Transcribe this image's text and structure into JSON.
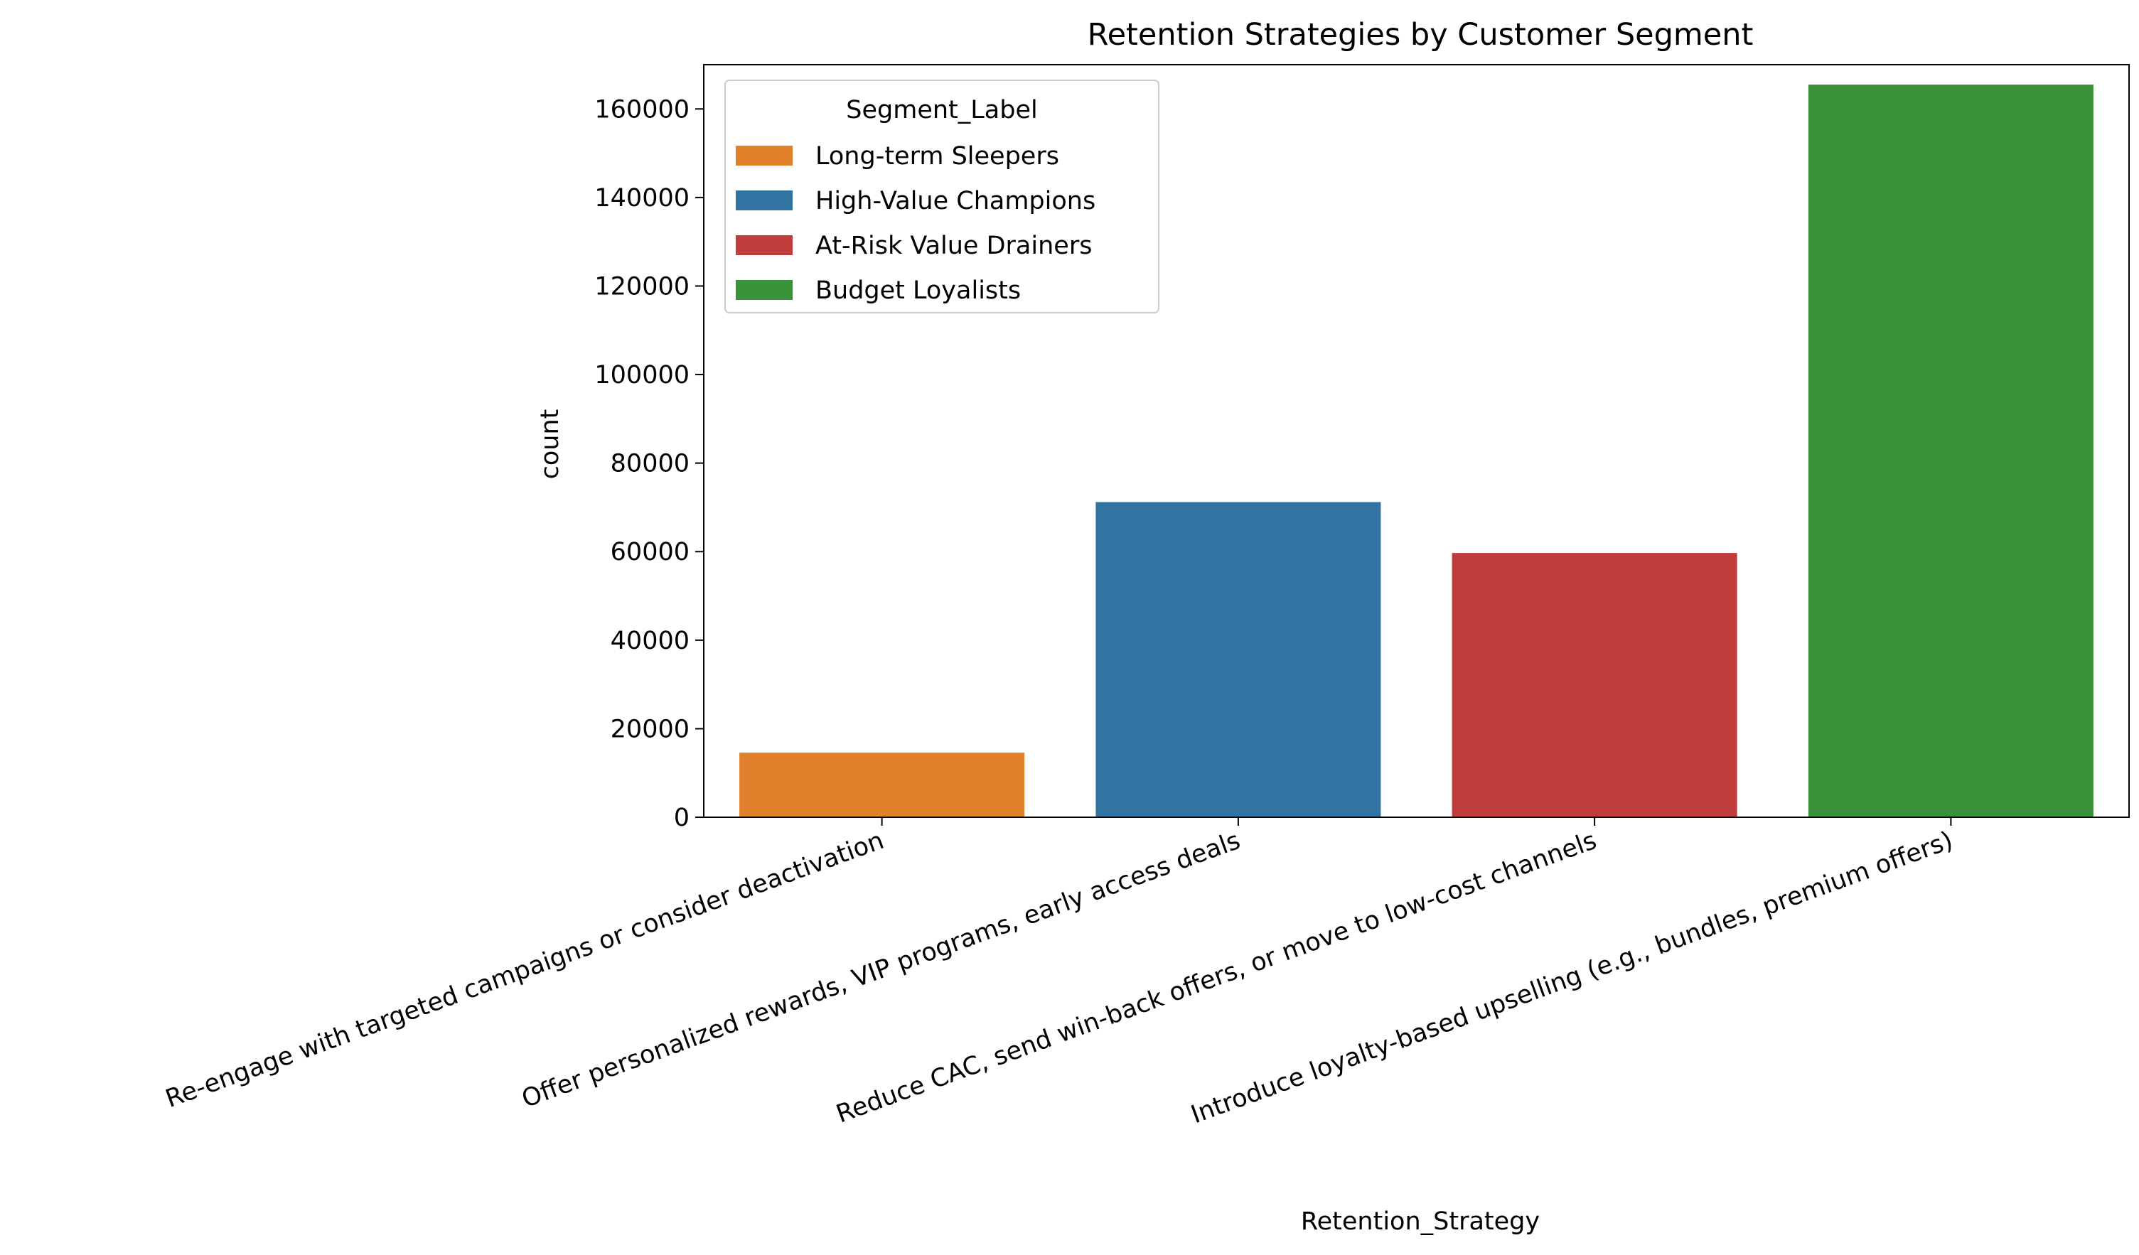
{
  "chart_data": {
    "type": "bar",
    "title": "Retention Strategies by Customer Segment",
    "xlabel": "Retention_Strategy",
    "ylabel": "count",
    "ylim": [
      0,
      170000
    ],
    "yticks": [
      0,
      20000,
      40000,
      60000,
      80000,
      100000,
      120000,
      140000,
      160000
    ],
    "ytick_labels": [
      "0",
      "20000",
      "40000",
      "60000",
      "80000",
      "100000",
      "120000",
      "140000",
      "160000"
    ],
    "categories": [
      "Re-engage with targeted campaigns or consider deactivation",
      "Offer personalized rewards, VIP programs, early access deals",
      "Reduce CAC, send win-back offers, or move to low-cost channels",
      "Introduce loyalty-based upselling (e.g., bundles, premium offers)"
    ],
    "values": [
      14600,
      71200,
      59700,
      165500
    ],
    "bar_segments": [
      "Long-term Sleepers",
      "High-Value Champions",
      "At-Risk Value Drainers",
      "Budget Loyalists"
    ],
    "legend": {
      "title": "Segment_Label",
      "position": "upper-left",
      "entries": [
        {
          "label": "Long-term Sleepers",
          "color": "#e1812c"
        },
        {
          "label": "High-Value Champions",
          "color": "#3274a1"
        },
        {
          "label": "At-Risk Value Drainers",
          "color": "#c03d3e"
        },
        {
          "label": "Budget Loyalists",
          "color": "#3a923a"
        }
      ]
    },
    "grid": false
  }
}
